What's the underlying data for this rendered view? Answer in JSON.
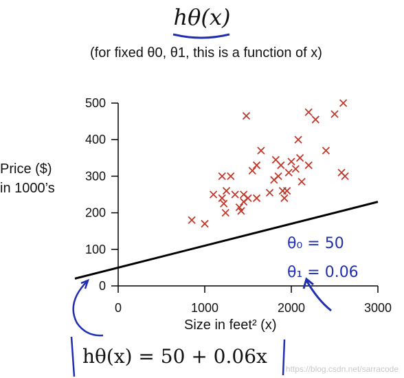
{
  "header": {
    "title": "hθ(x)",
    "subtitle": "(for fixed θ0, θ1, this is a function of x)"
  },
  "annotations": {
    "theta0": "θ₀ = 50",
    "theta1": "θ₁ = 0.06",
    "formula": "hθ(x) = 50 + 0.06x"
  },
  "watermark": "https://blog.csdn.net/sarracode",
  "colors": {
    "points": "#c0392b",
    "line": "#000000",
    "ink": "#1f2fb0"
  },
  "chart_data": {
    "type": "scatter",
    "xlabel": "Size in feet² (x)",
    "ylabel_lines": [
      "Price ($)",
      "in 1000’s"
    ],
    "xlim": [
      0,
      3000
    ],
    "ylim": [
      0,
      500
    ],
    "xticks": [
      0,
      1000,
      2000,
      3000
    ],
    "yticks": [
      0,
      100,
      200,
      300,
      400,
      500
    ],
    "grid": false,
    "points": [
      [
        850,
        180
      ],
      [
        1000,
        170
      ],
      [
        1100,
        250
      ],
      [
        1200,
        300
      ],
      [
        1200,
        240
      ],
      [
        1220,
        225
      ],
      [
        1240,
        200
      ],
      [
        1250,
        260
      ],
      [
        1300,
        300
      ],
      [
        1350,
        250
      ],
      [
        1400,
        215
      ],
      [
        1420,
        205
      ],
      [
        1450,
        230
      ],
      [
        1450,
        250
      ],
      [
        1480,
        465
      ],
      [
        1500,
        240
      ],
      [
        1550,
        315
      ],
      [
        1600,
        330
      ],
      [
        1600,
        240
      ],
      [
        1650,
        370
      ],
      [
        1750,
        255
      ],
      [
        1800,
        290
      ],
      [
        1820,
        345
      ],
      [
        1850,
        300
      ],
      [
        1880,
        330
      ],
      [
        1900,
        260
      ],
      [
        1920,
        240
      ],
      [
        1950,
        260
      ],
      [
        1970,
        310
      ],
      [
        2000,
        340
      ],
      [
        2050,
        320
      ],
      [
        2080,
        400
      ],
      [
        2100,
        350
      ],
      [
        2120,
        285
      ],
      [
        2200,
        330
      ],
      [
        2200,
        475
      ],
      [
        2280,
        455
      ],
      [
        2400,
        370
      ],
      [
        2500,
        470
      ],
      [
        2580,
        310
      ],
      [
        2600,
        500
      ],
      [
        2620,
        300
      ]
    ],
    "line": {
      "intercept": 50,
      "slope": 0.06,
      "x_range": [
        0,
        3000
      ]
    }
  }
}
